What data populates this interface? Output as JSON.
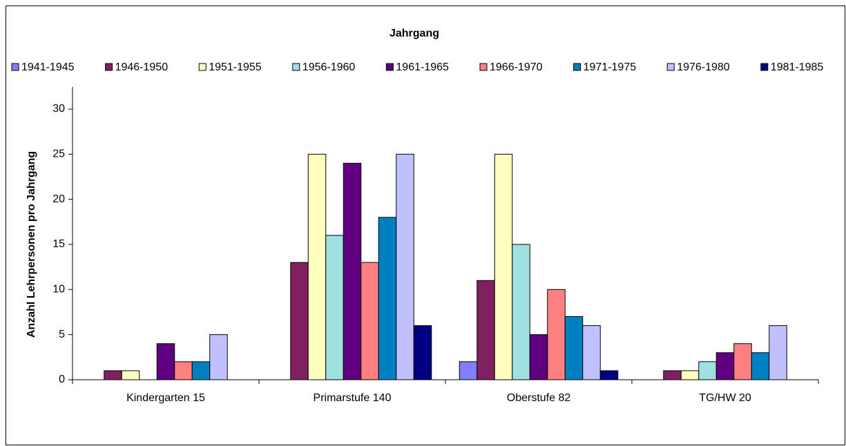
{
  "chart_data": {
    "type": "bar",
    "title": "Jahrgang",
    "y_label": "Anzahl Lehrpersonen pro Jahrgang",
    "categories": [
      "Kindergarten 15",
      "Primarstufe 140",
      "Oberstufe 82",
      "TG/HW 20"
    ],
    "series": [
      {
        "name": "1941-1945",
        "color": "#8080ff",
        "values": [
          0,
          0,
          2,
          0
        ]
      },
      {
        "name": "1946-1950",
        "color": "#802060",
        "values": [
          1,
          13,
          11,
          1
        ]
      },
      {
        "name": "1951-1955",
        "color": "#ffffc0",
        "values": [
          1,
          25,
          25,
          1
        ]
      },
      {
        "name": "1956-1960",
        "color": "#a0e0e0",
        "values": [
          0,
          16,
          15,
          2
        ]
      },
      {
        "name": "1961-1965",
        "color": "#600080",
        "values": [
          4,
          24,
          5,
          3
        ]
      },
      {
        "name": "1966-1970",
        "color": "#ff8080",
        "values": [
          2,
          13,
          10,
          4
        ]
      },
      {
        "name": "1971-1975",
        "color": "#0080c0",
        "values": [
          2,
          18,
          7,
          3
        ]
      },
      {
        "name": "1976-1980",
        "color": "#c0c0ff",
        "values": [
          5,
          25,
          6,
          6
        ]
      },
      {
        "name": "1981-1985",
        "color": "#000080",
        "values": [
          0,
          6,
          1,
          0
        ]
      }
    ],
    "ylim": [
      0,
      30
    ],
    "yticks": [
      0,
      5,
      10,
      15,
      20,
      25,
      30
    ],
    "grid": false,
    "legend": "top"
  }
}
